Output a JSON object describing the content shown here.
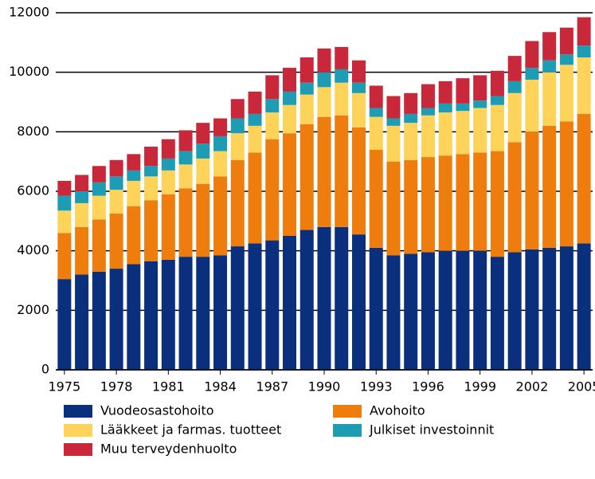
{
  "chart_data": {
    "type": "stacked_bar",
    "categories": [
      "1975",
      null,
      null,
      "1978",
      null,
      null,
      "1981",
      null,
      null,
      "1984",
      null,
      null,
      "1987",
      null,
      null,
      "1990",
      null,
      null,
      "1993",
      null,
      null,
      "1996",
      null,
      null,
      "1999",
      null,
      null,
      "2002",
      null,
      null,
      "2005"
    ],
    "series": [
      {
        "name": "Vuodeosastohoito",
        "color": "#0a2f7c",
        "values": [
          3050,
          3200,
          3300,
          3400,
          3550,
          3650,
          3700,
          3800,
          3800,
          3850,
          4150,
          4250,
          4350,
          4500,
          4700,
          4800,
          4800,
          4550,
          4100,
          3850,
          3900,
          3950,
          4000,
          4000,
          4000,
          3800,
          3950,
          4050,
          4100,
          4150,
          4250
        ]
      },
      {
        "name": "Avohoito",
        "color": "#ee7d0e",
        "values": [
          1550,
          1600,
          1750,
          1850,
          1950,
          2050,
          2200,
          2300,
          2450,
          2650,
          2900,
          3050,
          3400,
          3450,
          3550,
          3700,
          3750,
          3600,
          3300,
          3150,
          3150,
          3200,
          3200,
          3250,
          3300,
          3550,
          3700,
          3950,
          4100,
          4200,
          4350
        ]
      },
      {
        "name": "Lääkkeet ja farmas. tuotteet",
        "color": "#fdd35a",
        "values": [
          750,
          800,
          800,
          800,
          850,
          800,
          800,
          800,
          850,
          850,
          900,
          900,
          900,
          950,
          1000,
          1000,
          1100,
          1150,
          1100,
          1200,
          1250,
          1400,
          1450,
          1450,
          1500,
          1550,
          1650,
          1750,
          1800,
          1900,
          1900
        ]
      },
      {
        "name": "Julkiset investoinnit",
        "color": "#1e9cb3",
        "values": [
          500,
          400,
          450,
          450,
          350,
          350,
          400,
          450,
          500,
          500,
          500,
          400,
          450,
          450,
          400,
          500,
          450,
          350,
          300,
          250,
          300,
          250,
          300,
          250,
          250,
          300,
          400,
          400,
          400,
          350,
          400
        ]
      },
      {
        "name": "Muu terveydenhuolto",
        "color": "#c8283a",
        "values": [
          500,
          550,
          550,
          550,
          550,
          650,
          650,
          700,
          700,
          600,
          650,
          750,
          800,
          800,
          850,
          800,
          750,
          750,
          750,
          750,
          700,
          800,
          750,
          850,
          850,
          850,
          850,
          900,
          950,
          900,
          950
        ]
      }
    ],
    "ylim": [
      0,
      12000
    ],
    "yticks": [
      0,
      2000,
      4000,
      6000,
      8000,
      10000,
      12000
    ],
    "grid": true
  }
}
